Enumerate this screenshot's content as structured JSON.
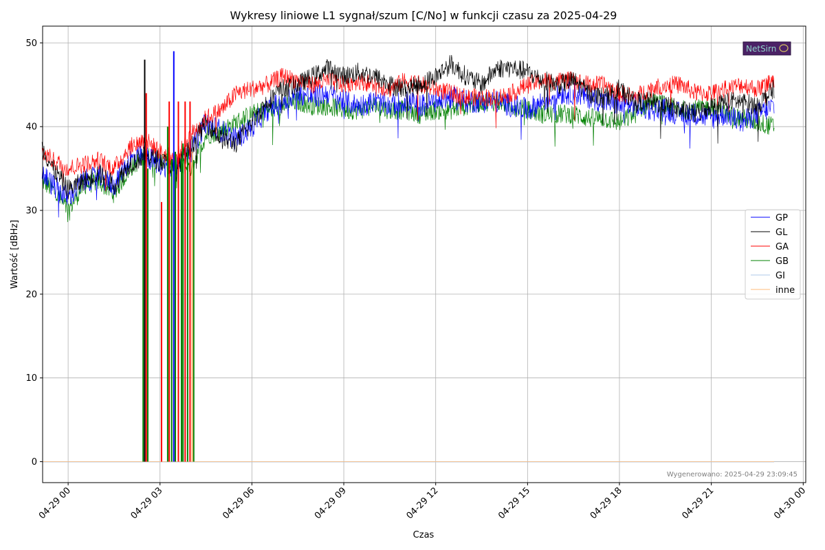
{
  "chart_data": {
    "type": "line",
    "title": "Wykresy liniowe L1 sygnał/szum [C/No] w funkcji czasu za 2025-04-29",
    "xlabel": "Czas",
    "ylabel": "Wartość [dBHz]",
    "x_ticks": [
      "04-29 00",
      "04-29 03",
      "04-29 06",
      "04-29 09",
      "04-29 12",
      "04-29 15",
      "04-29 18",
      "04-29 21",
      "04-30 00"
    ],
    "y_ticks": [
      "0",
      "10",
      "20",
      "30",
      "40",
      "50"
    ],
    "xlim": [
      "2025-04-28 23:10",
      "2025-04-30 00:05"
    ],
    "ylim": [
      -2.5,
      52
    ],
    "grid": true,
    "legend_position": "right",
    "footnote": "Wygenerowano: 2025-04-29 23:09:45",
    "logo_text": "NetSirn",
    "colors": {
      "GP": "#0000ff",
      "GL": "#000000",
      "GA": "#ff0000",
      "GB": "#008000",
      "GI": "#aec7e8",
      "inne": "#ffbb78"
    },
    "series": [
      {
        "name": "GP",
        "x_hours": [
          -0.85,
          -0.5,
          0,
          0.5,
          1,
          1.5,
          2,
          2.5,
          3,
          3.5,
          4,
          4.5,
          5,
          5.5,
          6,
          6.5,
          7,
          7.5,
          8,
          8.5,
          9,
          9.5,
          10,
          10.5,
          11,
          11.5,
          12,
          12.5,
          13,
          13.5,
          14,
          14.5,
          15,
          15.5,
          16,
          16.5,
          17,
          17.5,
          18,
          18.5,
          19,
          19.5,
          20,
          20.5,
          21,
          21.5,
          22,
          22.5,
          23.05
        ],
        "values": [
          34.5,
          33,
          31.5,
          33.5,
          34,
          33,
          36,
          36.5,
          35.5,
          35,
          37,
          40.5,
          39.5,
          38.5,
          40,
          42,
          43,
          44,
          43.5,
          44,
          43,
          42.5,
          43,
          42.5,
          43,
          42.5,
          43,
          43.5,
          43,
          43,
          43,
          42.5,
          42,
          43,
          44,
          44,
          43.5,
          43,
          42.5,
          42.5,
          42,
          42,
          41.5,
          41.5,
          41,
          41.5,
          40.5,
          41.5,
          42.5
        ]
      },
      {
        "name": "GL",
        "x_hours": [
          -0.85,
          -0.5,
          0,
          0.5,
          1,
          1.5,
          2,
          2.5,
          3,
          3.5,
          4,
          4.5,
          5,
          5.5,
          6,
          6.5,
          7,
          7.5,
          8,
          8.5,
          9,
          9.5,
          10,
          10.5,
          11,
          11.5,
          12,
          12.5,
          13,
          13.5,
          14,
          14.5,
          15,
          15.5,
          16,
          16.5,
          17,
          17.5,
          18,
          18.5,
          19,
          19.5,
          20,
          20.5,
          21,
          21.5,
          22,
          22.5,
          23.05
        ],
        "values": [
          37.5,
          35,
          32.5,
          33.5,
          34.5,
          33,
          35.5,
          36.5,
          36,
          35,
          37.5,
          40.5,
          38.5,
          38,
          40.5,
          43,
          44.5,
          45,
          46,
          47,
          46,
          46.5,
          46,
          45,
          44.5,
          45,
          46,
          47.5,
          46,
          45,
          47,
          47,
          46.5,
          45.5,
          45,
          45.5,
          44,
          43.5,
          44.5,
          43,
          43,
          42.5,
          42,
          41.5,
          42.5,
          43,
          43,
          42.5,
          44.5
        ]
      },
      {
        "name": "GA",
        "x_hours": [
          -0.85,
          -0.5,
          0,
          0.5,
          1,
          1.5,
          2,
          2.5,
          3,
          3.5,
          4,
          4.5,
          5,
          5.5,
          6,
          6.5,
          7,
          7.5,
          8,
          8.5,
          9,
          9.5,
          10,
          10.5,
          11,
          11.5,
          12,
          12.5,
          13,
          13.5,
          14,
          14.5,
          15,
          15.5,
          16,
          16.5,
          17,
          17.5,
          18,
          18.5,
          19,
          19.5,
          20,
          20.5,
          21,
          21.5,
          22,
          22.5,
          23.05
        ],
        "values": [
          37,
          36,
          35,
          35.5,
          36,
          35,
          37.5,
          38.5,
          37,
          36,
          39,
          41,
          42,
          44,
          44.5,
          45,
          46,
          45.5,
          45,
          45.5,
          45,
          45.5,
          45,
          44.5,
          45.5,
          45,
          44.5,
          44,
          43.5,
          43.5,
          43.5,
          44,
          45,
          45.5,
          45.5,
          45.5,
          45,
          45,
          44,
          43.5,
          44.5,
          45,
          45,
          44,
          44,
          44.5,
          45,
          44.5,
          45.5
        ]
      },
      {
        "name": "GB",
        "x_hours": [
          -0.85,
          -0.5,
          0,
          0.5,
          1,
          1.5,
          2,
          2.5,
          3,
          3.5,
          4,
          4.5,
          5,
          5.5,
          6,
          6.5,
          7,
          7.5,
          8,
          8.5,
          9,
          9.5,
          10,
          10.5,
          11,
          11.5,
          12,
          12.5,
          13,
          13.5,
          14,
          14.5,
          15,
          15.5,
          16,
          16.5,
          17,
          17.5,
          18,
          18.5,
          19,
          19.5,
          20,
          20.5,
          21,
          21.5,
          22,
          22.5,
          23.05
        ],
        "values": [
          33.5,
          32.5,
          30,
          33,
          33.5,
          32,
          35,
          36.5,
          36,
          35.5,
          35,
          39,
          39.5,
          40.5,
          41.5,
          42,
          42.5,
          43,
          42.5,
          42.5,
          42,
          42,
          42.5,
          42,
          42,
          41.5,
          42,
          42,
          42.5,
          43,
          43,
          42.5,
          42,
          41.5,
          41.5,
          41.5,
          41,
          41,
          40.5,
          41.5,
          43,
          42.5,
          42,
          42,
          42.5,
          41.5,
          41,
          40.5,
          40
        ]
      }
    ]
  }
}
